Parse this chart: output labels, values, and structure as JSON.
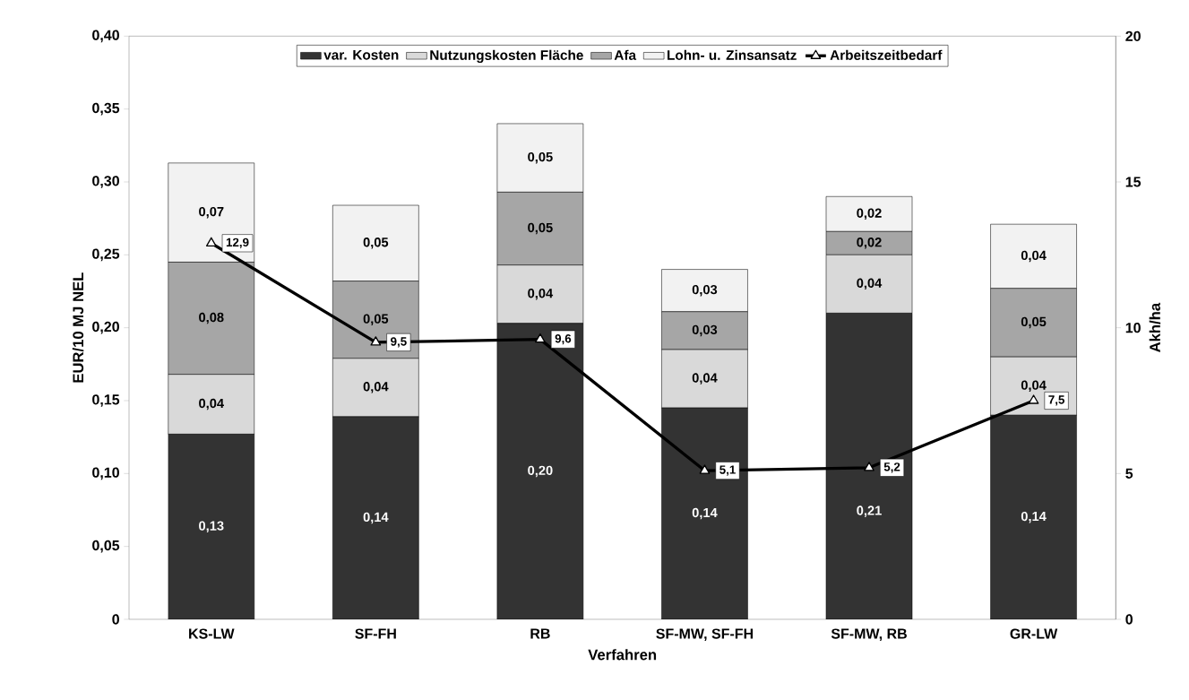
{
  "chart_data": {
    "type": "bar",
    "stacked": true,
    "xlabel": "Verfahren",
    "ylabel": "EUR/10 MJ NEL",
    "y2label": "Akh/ha",
    "categories": [
      "KS-LW",
      "SF-FH",
      "RB",
      "SF-MW, SF-FH",
      "SF-MW, RB",
      "GR-LW"
    ],
    "ylim": [
      0,
      0.4
    ],
    "yticks": [
      0,
      {
        "value": 0.05,
        "label": "0,05"
      },
      {
        "value": 0.1,
        "label": "0,10"
      },
      {
        "value": 0.15,
        "label": "0,15"
      },
      {
        "value": 0.2,
        "label": "0,20"
      },
      {
        "value": 0.25,
        "label": "0,25"
      },
      {
        "value": 0.3,
        "label": "0,30"
      },
      {
        "value": 0.35,
        "label": "0,35"
      },
      {
        "value": 0.4,
        "label": "0,40"
      }
    ],
    "y2lim": [
      0,
      20
    ],
    "y2ticks": [
      0,
      5,
      10,
      15,
      20
    ],
    "legend": "top",
    "marker": "triangle",
    "series": [
      {
        "name": "var. Kosten",
        "type": "bar",
        "color": "#333333",
        "values": [
          0.127,
          0.139,
          0.203,
          0.145,
          0.21,
          0.14
        ],
        "value_labels": [
          "0,13",
          "0,14",
          "0,20",
          "0,14",
          "0,21",
          "0,14"
        ]
      },
      {
        "name": "Nutzungskosten Fläche",
        "type": "bar",
        "color": "#d9d9d9",
        "values": [
          0.041,
          0.04,
          0.04,
          0.04,
          0.04,
          0.04
        ],
        "value_labels": [
          "0,04",
          "0,04",
          "0,04",
          "0,04",
          "0,04",
          "0,04"
        ]
      },
      {
        "name": "Afa",
        "type": "bar",
        "color": "#a6a6a6",
        "values": [
          0.077,
          0.053,
          0.05,
          0.026,
          0.016,
          0.047
        ],
        "value_labels": [
          "0,08",
          "0,05",
          "0,05",
          "0,03",
          "0,02",
          "0,05"
        ]
      },
      {
        "name": "Lohn- u. Zinsansatz",
        "type": "bar",
        "color": "#f2f2f2",
        "values": [
          0.068,
          0.052,
          0.047,
          0.029,
          0.024,
          0.044
        ],
        "value_labels": [
          "0,07",
          "0,05",
          "0,05",
          "0,03",
          "0,02",
          "0,04"
        ]
      },
      {
        "name": "Arbeitszeitbedarf",
        "type": "line",
        "axis": "y2",
        "color": "#000000",
        "values": [
          12.9,
          9.5,
          9.6,
          5.1,
          5.2,
          7.5
        ],
        "value_labels": [
          "12,9",
          "9,5",
          "9,6",
          "5,1",
          "5,2",
          "7,5"
        ]
      }
    ]
  }
}
